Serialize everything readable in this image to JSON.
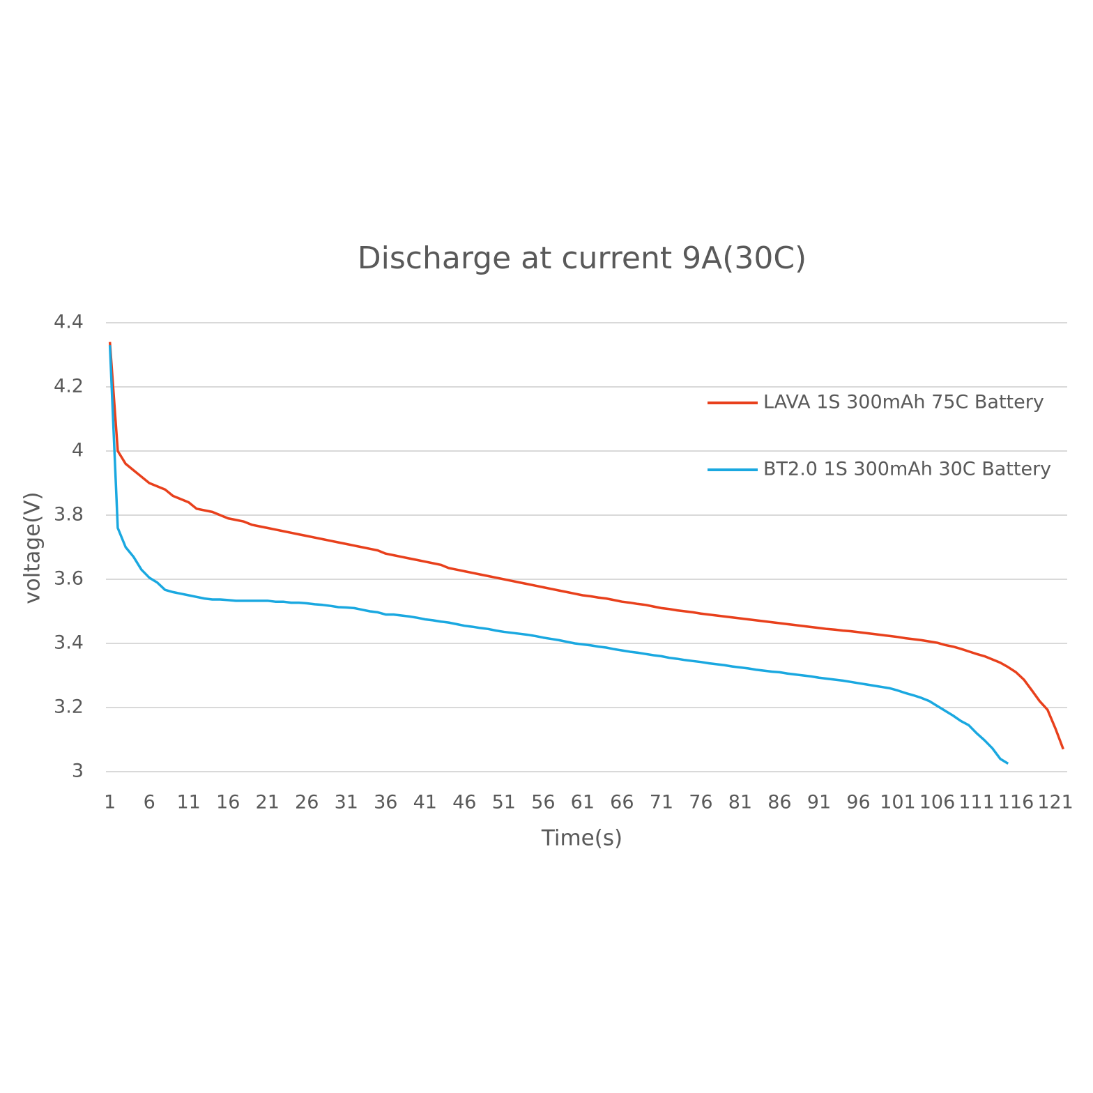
{
  "chart_data": {
    "type": "line",
    "title": "Discharge at current 9A(30C)",
    "x_label": "Time(s)",
    "y_label": "voltage(V)",
    "categories": [
      "1",
      null,
      null,
      null,
      null,
      "6",
      null,
      null,
      null,
      null,
      "11",
      null,
      null,
      null,
      null,
      "16",
      null,
      null,
      null,
      null,
      "21",
      null,
      null,
      null,
      null,
      "26",
      null,
      null,
      null,
      null,
      "31",
      null,
      null,
      null,
      null,
      "36",
      null,
      null,
      null,
      null,
      "41",
      null,
      null,
      null,
      null,
      "46",
      null,
      null,
      null,
      null,
      "51",
      null,
      null,
      null,
      null,
      "56",
      null,
      null,
      null,
      null,
      "61",
      null,
      null,
      null,
      null,
      "66",
      null,
      null,
      null,
      null,
      "71",
      null,
      null,
      null,
      null,
      "76",
      null,
      null,
      null,
      null,
      "81",
      null,
      null,
      null,
      null,
      "86",
      null,
      null,
      null,
      null,
      "91",
      null,
      null,
      null,
      null,
      "96",
      null,
      null,
      null,
      null,
      "101",
      null,
      null,
      null,
      null,
      "106",
      null,
      null,
      null,
      null,
      "111",
      null,
      null,
      null,
      null,
      "116",
      null,
      null,
      null,
      null,
      "121",
      null
    ],
    "series": [
      {
        "name": "LAVA 1S 300mAh 75C Battery",
        "color": "#e8401c",
        "values": [
          4.34,
          4.0,
          3.96,
          3.94,
          3.92,
          3.9,
          3.89,
          3.88,
          3.86,
          3.85,
          3.84,
          3.82,
          3.815,
          3.81,
          3.8,
          3.79,
          3.785,
          3.78,
          3.77,
          3.765,
          3.76,
          3.755,
          3.75,
          3.745,
          3.74,
          3.735,
          3.73,
          3.725,
          3.72,
          3.715,
          3.71,
          3.705,
          3.7,
          3.695,
          3.69,
          3.68,
          3.675,
          3.67,
          3.665,
          3.66,
          3.655,
          3.65,
          3.645,
          3.635,
          3.63,
          3.625,
          3.62,
          3.615,
          3.61,
          3.605,
          3.6,
          3.595,
          3.59,
          3.585,
          3.58,
          3.575,
          3.57,
          3.565,
          3.56,
          3.555,
          3.55,
          3.547,
          3.543,
          3.54,
          3.535,
          3.53,
          3.527,
          3.523,
          3.52,
          3.515,
          3.51,
          3.507,
          3.503,
          3.5,
          3.497,
          3.493,
          3.49,
          3.487,
          3.484,
          3.481,
          3.478,
          3.475,
          3.472,
          3.469,
          3.466,
          3.463,
          3.46,
          3.457,
          3.454,
          3.451,
          3.448,
          3.445,
          3.443,
          3.44,
          3.438,
          3.435,
          3.432,
          3.429,
          3.426,
          3.423,
          3.42,
          3.416,
          3.413,
          3.41,
          3.406,
          3.402,
          3.395,
          3.39,
          3.383,
          3.375,
          3.367,
          3.36,
          3.35,
          3.34,
          3.326,
          3.31,
          3.287,
          3.254,
          3.22,
          3.193,
          3.135,
          3.07
        ]
      },
      {
        "name": "BT2.0 1S 300mAh 30C Battery",
        "color": "#1aa8e0",
        "values": [
          4.33,
          3.76,
          3.7,
          3.67,
          3.63,
          3.605,
          3.59,
          3.567,
          3.56,
          3.555,
          3.55,
          3.545,
          3.54,
          3.537,
          3.537,
          3.535,
          3.533,
          3.533,
          3.533,
          3.533,
          3.533,
          3.53,
          3.53,
          3.527,
          3.527,
          3.525,
          3.522,
          3.52,
          3.517,
          3.513,
          3.512,
          3.51,
          3.505,
          3.5,
          3.497,
          3.49,
          3.49,
          3.487,
          3.484,
          3.48,
          3.475,
          3.472,
          3.468,
          3.465,
          3.46,
          3.455,
          3.452,
          3.448,
          3.445,
          3.44,
          3.436,
          3.433,
          3.43,
          3.427,
          3.423,
          3.418,
          3.414,
          3.41,
          3.405,
          3.4,
          3.397,
          3.394,
          3.39,
          3.387,
          3.382,
          3.378,
          3.374,
          3.371,
          3.367,
          3.363,
          3.36,
          3.355,
          3.352,
          3.348,
          3.345,
          3.342,
          3.338,
          3.335,
          3.332,
          3.328,
          3.325,
          3.322,
          3.318,
          3.315,
          3.312,
          3.31,
          3.306,
          3.303,
          3.3,
          3.297,
          3.293,
          3.29,
          3.287,
          3.284,
          3.28,
          3.276,
          3.272,
          3.268,
          3.264,
          3.26,
          3.253,
          3.245,
          3.238,
          3.23,
          3.22,
          3.205,
          3.19,
          3.175,
          3.158,
          3.145,
          3.12,
          3.098,
          3.073,
          3.04,
          3.025,
          null,
          null,
          null,
          null,
          null,
          null,
          null
        ]
      }
    ],
    "ylim": [
      3,
      4.4
    ],
    "yticks": [
      3,
      3.2,
      3.4,
      3.6,
      3.8,
      4,
      4.2,
      4.4
    ],
    "grid": true,
    "legend": "upper right"
  }
}
